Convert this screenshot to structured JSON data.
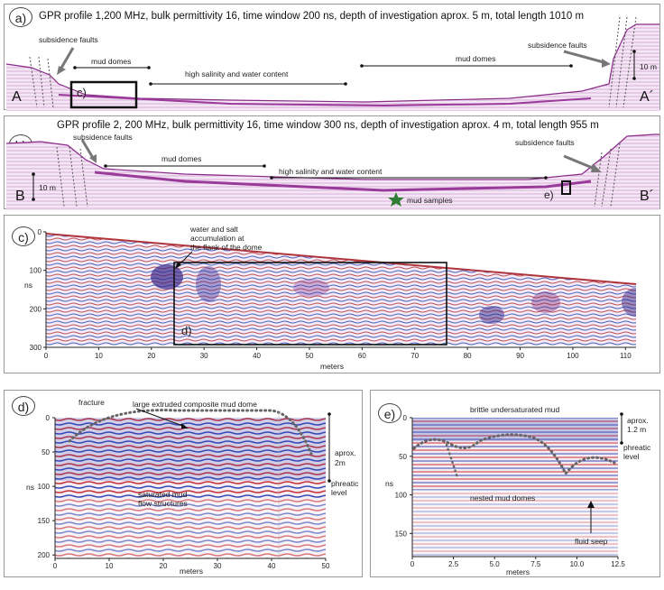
{
  "panel_a": {
    "tag": "a)",
    "title": "GPR profile 1,200 MHz, bulk permittivity 16, time window 200 ns, depth of investigation aprox. 5 m, total length 1010 m",
    "labels": {
      "faults_left": "subsidence faults",
      "faults_right": "subsidence faults",
      "mud_domes_left": "mud domes",
      "mud_domes_right": "mud domes",
      "salinity": "high salinity and water content",
      "box": "c)",
      "scale": "10 m",
      "end_left": "A",
      "end_right": "A´"
    }
  },
  "panel_b": {
    "tag": "b)",
    "title": "GPR profile 2, 200 MHz, bulk permittivity 16, time window 300 ns, depth of investigation aprox. 4 m, total length 955 m",
    "labels": {
      "faults_left": "subsidence faults",
      "faults_right": "subsidence faults",
      "mud_domes": "mud domes",
      "salinity": "high salinity and water content",
      "samples": "mud samples",
      "box": "e)",
      "scale": "10 m",
      "end_left": "B",
      "end_right": "B´"
    }
  },
  "panel_c": {
    "tag": "c)",
    "annotation": [
      "water and salt",
      "accumulation at",
      "the flank of the dome"
    ],
    "box": "d)",
    "ylabel": "ns",
    "xlabel": "meters",
    "yticks": [
      "0",
      "100",
      "200",
      "300"
    ],
    "xticks": [
      "0",
      "10",
      "20",
      "30",
      "40",
      "50",
      "60",
      "70",
      "80",
      "90",
      "100",
      "110"
    ]
  },
  "panel_d": {
    "tag": "d)",
    "fracture": "fracture",
    "dome": "large extruded composite mud dome",
    "saturated": [
      "saturated mud",
      "flow structures"
    ],
    "side": [
      "aprox.",
      "2m",
      "phreatic",
      "level"
    ],
    "ylabel": "ns",
    "xlabel": "meters",
    "yticks": [
      "0",
      "50",
      "100",
      "150",
      "200"
    ],
    "xticks": [
      "0",
      "10",
      "20",
      "30",
      "40",
      "50"
    ]
  },
  "panel_e": {
    "tag": "e)",
    "brittle": "brittle undersaturated mud",
    "nested": "nested mud domes",
    "seep": "fluid seep",
    "side": [
      "aprox.",
      "1.2 m",
      "phreatic",
      "level"
    ],
    "ylabel": "ns",
    "xlabel": "meters",
    "yticks": [
      "0",
      "50",
      "100",
      "150"
    ],
    "xticks": [
      "0",
      "2.5",
      "5.0",
      "7.5",
      "10.0",
      "12.5"
    ]
  },
  "colors": {
    "profile": "#8a2a8a",
    "radar_red": "#d2303a",
    "radar_blue": "#3040b0",
    "star": "#2f7d32"
  }
}
